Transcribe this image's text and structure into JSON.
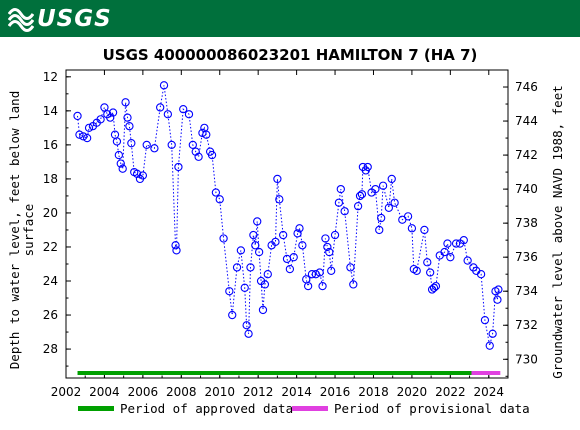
{
  "header": {
    "logo_text": "USGS",
    "logo_icon": "usgs-wave-icon",
    "banner_color": "#00703c"
  },
  "chart_data": {
    "type": "scatter",
    "title": "USGS 400000086023201 HAMILTON 7 (HA 7)",
    "ylabel_left": "Depth to water level, feet below land surface",
    "ylabel_right": "Groundwater level above NAVD 1988, feet",
    "x_ticks": [
      "2002",
      "2004",
      "2006",
      "2008",
      "2010",
      "2012",
      "2014",
      "2016",
      "2018",
      "2020",
      "2022",
      "2024"
    ],
    "xlim": [
      2002,
      2025
    ],
    "y_left_ticks": [
      12,
      14,
      16,
      18,
      20,
      22,
      24,
      26,
      28
    ],
    "ylim_left": [
      29.7,
      11.6
    ],
    "y_right_ticks": [
      746,
      744,
      742,
      740,
      738,
      736,
      734,
      732,
      730
    ],
    "ylim_right": [
      728.9,
      747.0
    ],
    "grid": false,
    "series_color": "#0000ff",
    "points": [
      [
        2002.6,
        14.3
      ],
      [
        2002.7,
        15.4
      ],
      [
        2002.9,
        15.5
      ],
      [
        2003.1,
        15.6
      ],
      [
        2003.2,
        15.0
      ],
      [
        2003.4,
        14.9
      ],
      [
        2003.6,
        14.7
      ],
      [
        2003.8,
        14.5
      ],
      [
        2004.0,
        13.8
      ],
      [
        2004.15,
        14.2
      ],
      [
        2004.3,
        14.4
      ],
      [
        2004.45,
        14.1
      ],
      [
        2004.55,
        15.4
      ],
      [
        2004.65,
        15.8
      ],
      [
        2004.75,
        16.6
      ],
      [
        2004.85,
        17.1
      ],
      [
        2004.95,
        17.4
      ],
      [
        2005.1,
        13.5
      ],
      [
        2005.2,
        14.4
      ],
      [
        2005.3,
        14.9
      ],
      [
        2005.4,
        15.9
      ],
      [
        2005.55,
        17.6
      ],
      [
        2005.7,
        17.7
      ],
      [
        2005.85,
        18.0
      ],
      [
        2006.0,
        17.8
      ],
      [
        2006.2,
        16.0
      ],
      [
        2006.6,
        16.2
      ],
      [
        2006.9,
        13.8
      ],
      [
        2007.1,
        12.5
      ],
      [
        2007.3,
        14.2
      ],
      [
        2007.5,
        16.0
      ],
      [
        2007.7,
        21.9
      ],
      [
        2007.75,
        22.2
      ],
      [
        2007.85,
        17.3
      ],
      [
        2008.1,
        13.9
      ],
      [
        2008.4,
        14.2
      ],
      [
        2008.6,
        16.0
      ],
      [
        2008.75,
        16.4
      ],
      [
        2008.9,
        16.7
      ],
      [
        2009.1,
        15.3
      ],
      [
        2009.2,
        15.0
      ],
      [
        2009.3,
        15.4
      ],
      [
        2009.5,
        16.4
      ],
      [
        2009.6,
        16.6
      ],
      [
        2009.8,
        18.8
      ],
      [
        2010.0,
        19.2
      ],
      [
        2010.2,
        21.5
      ],
      [
        2010.5,
        24.6
      ],
      [
        2010.65,
        26.0
      ],
      [
        2010.9,
        23.2
      ],
      [
        2011.1,
        22.2
      ],
      [
        2011.3,
        24.4
      ],
      [
        2011.4,
        26.6
      ],
      [
        2011.5,
        27.1
      ],
      [
        2011.6,
        23.2
      ],
      [
        2011.75,
        21.3
      ],
      [
        2011.85,
        21.9
      ],
      [
        2011.95,
        20.5
      ],
      [
        2012.05,
        22.3
      ],
      [
        2012.15,
        24.0
      ],
      [
        2012.25,
        25.7
      ],
      [
        2012.35,
        24.2
      ],
      [
        2012.5,
        23.6
      ],
      [
        2012.7,
        21.9
      ],
      [
        2012.9,
        21.7
      ],
      [
        2013.0,
        18.0
      ],
      [
        2013.1,
        19.2
      ],
      [
        2013.3,
        21.3
      ],
      [
        2013.5,
        22.7
      ],
      [
        2013.65,
        23.3
      ],
      [
        2013.85,
        22.6
      ],
      [
        2014.05,
        21.2
      ],
      [
        2014.15,
        20.9
      ],
      [
        2014.3,
        21.9
      ],
      [
        2014.5,
        23.9
      ],
      [
        2014.6,
        24.3
      ],
      [
        2014.8,
        23.6
      ],
      [
        2015.0,
        23.6
      ],
      [
        2015.2,
        23.5
      ],
      [
        2015.35,
        24.3
      ],
      [
        2015.5,
        21.5
      ],
      [
        2015.6,
        22.0
      ],
      [
        2015.7,
        22.3
      ],
      [
        2015.8,
        23.4
      ],
      [
        2016.0,
        21.3
      ],
      [
        2016.2,
        19.4
      ],
      [
        2016.3,
        18.6
      ],
      [
        2016.5,
        19.9
      ],
      [
        2016.8,
        23.2
      ],
      [
        2016.95,
        24.2
      ],
      [
        2017.2,
        19.6
      ],
      [
        2017.3,
        19.0
      ],
      [
        2017.4,
        18.9
      ],
      [
        2017.45,
        17.3
      ],
      [
        2017.6,
        17.5
      ],
      [
        2017.7,
        17.3
      ],
      [
        2017.9,
        18.8
      ],
      [
        2018.1,
        18.6
      ],
      [
        2018.3,
        21.0
      ],
      [
        2018.4,
        20.3
      ],
      [
        2018.5,
        18.4
      ],
      [
        2018.8,
        19.7
      ],
      [
        2018.95,
        18.0
      ],
      [
        2019.1,
        19.4
      ],
      [
        2019.5,
        20.4
      ],
      [
        2019.8,
        20.2
      ],
      [
        2020.0,
        20.9
      ],
      [
        2020.1,
        23.3
      ],
      [
        2020.25,
        23.4
      ],
      [
        2020.65,
        21.0
      ],
      [
        2020.8,
        22.9
      ],
      [
        2020.95,
        23.5
      ],
      [
        2021.05,
        24.5
      ],
      [
        2021.15,
        24.4
      ],
      [
        2021.25,
        24.3
      ],
      [
        2021.45,
        22.5
      ],
      [
        2021.7,
        22.3
      ],
      [
        2021.85,
        21.8
      ],
      [
        2022.0,
        22.6
      ],
      [
        2022.3,
        21.8
      ],
      [
        2022.5,
        21.8
      ],
      [
        2022.7,
        21.6
      ],
      [
        2022.9,
        22.8
      ],
      [
        2023.2,
        23.2
      ],
      [
        2023.35,
        23.4
      ],
      [
        2023.6,
        23.6
      ],
      [
        2023.8,
        26.3
      ],
      [
        2024.05,
        27.8
      ],
      [
        2024.2,
        27.1
      ],
      [
        2024.35,
        24.6
      ],
      [
        2024.45,
        25.1
      ],
      [
        2024.5,
        24.5
      ]
    ],
    "periods": [
      {
        "name": "Period of approved data",
        "start": 2002.6,
        "end": 2023.1,
        "color": "#00a000"
      },
      {
        "name": "Period of provisional data",
        "start": 2023.1,
        "end": 2024.6,
        "color": "#e040e0"
      }
    ]
  }
}
